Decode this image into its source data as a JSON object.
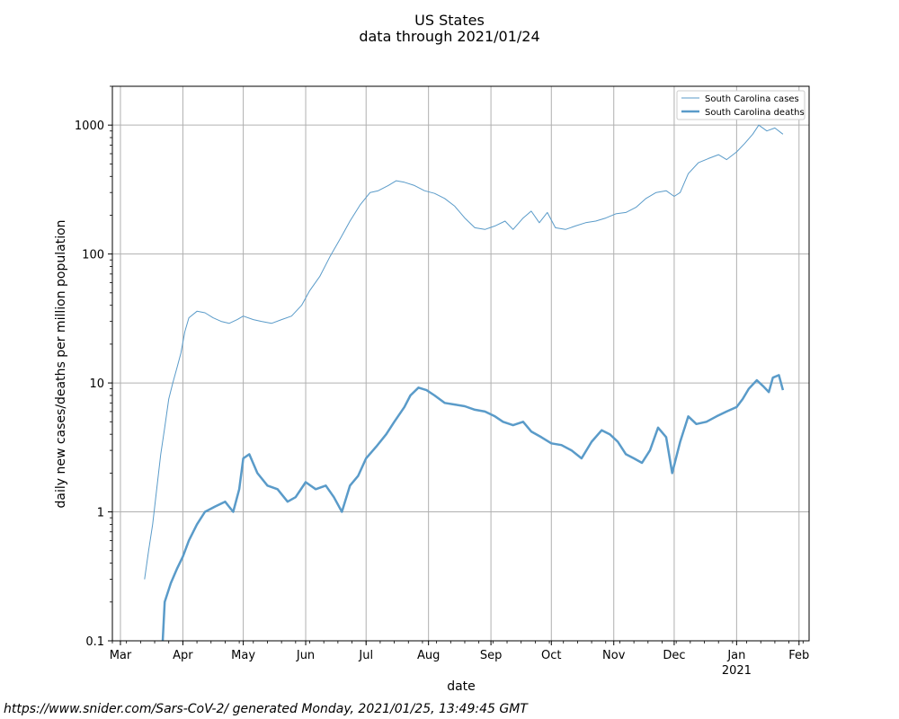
{
  "chart_data": {
    "type": "line",
    "title": "US States",
    "subtitle": "data through 2021/01/24",
    "xlabel": "date",
    "ylabel": "daily new cases/deaths per million population",
    "yscale": "log",
    "ylim": [
      0.1,
      2000
    ],
    "xlim": [
      "2020-02-26",
      "2021-02-06"
    ],
    "x_ticks": [
      {
        "date": "2020-03-01",
        "label": "Mar"
      },
      {
        "date": "2020-04-01",
        "label": "Apr"
      },
      {
        "date": "2020-05-01",
        "label": "May"
      },
      {
        "date": "2020-06-01",
        "label": "Jun"
      },
      {
        "date": "2020-07-01",
        "label": "Jul"
      },
      {
        "date": "2020-08-01",
        "label": "Aug"
      },
      {
        "date": "2020-09-01",
        "label": "Sep"
      },
      {
        "date": "2020-10-01",
        "label": "Oct"
      },
      {
        "date": "2020-11-01",
        "label": "Nov"
      },
      {
        "date": "2020-12-01",
        "label": "Dec"
      },
      {
        "date": "2021-01-01",
        "label": "Jan",
        "sublabel": "2021"
      },
      {
        "date": "2021-02-01",
        "label": "Feb"
      }
    ],
    "y_ticks": [
      {
        "value": 0.1,
        "label": "0.1"
      },
      {
        "value": 1,
        "label": "1"
      },
      {
        "value": 10,
        "label": "10"
      },
      {
        "value": 100,
        "label": "100"
      },
      {
        "value": 1000,
        "label": "1000"
      }
    ],
    "grid": true,
    "legend_position": "top-right",
    "series": [
      {
        "name": "South Carolina cases",
        "color": "#5a9bc9",
        "line": "thin",
        "points": [
          [
            "2020-03-13",
            0.3
          ],
          [
            "2020-03-15",
            0.5
          ],
          [
            "2020-03-17",
            0.8
          ],
          [
            "2020-03-19",
            1.5
          ],
          [
            "2020-03-21",
            2.8
          ],
          [
            "2020-03-23",
            4.5
          ],
          [
            "2020-03-25",
            7.5
          ],
          [
            "2020-03-27",
            10
          ],
          [
            "2020-03-29",
            13
          ],
          [
            "2020-03-31",
            17
          ],
          [
            "2020-04-02",
            25
          ],
          [
            "2020-04-04",
            32
          ],
          [
            "2020-04-08",
            36
          ],
          [
            "2020-04-12",
            35
          ],
          [
            "2020-04-16",
            32
          ],
          [
            "2020-04-20",
            30
          ],
          [
            "2020-04-24",
            29
          ],
          [
            "2020-04-28",
            31
          ],
          [
            "2020-05-01",
            33
          ],
          [
            "2020-05-06",
            31
          ],
          [
            "2020-05-10",
            30
          ],
          [
            "2020-05-15",
            29
          ],
          [
            "2020-05-20",
            31
          ],
          [
            "2020-05-25",
            33
          ],
          [
            "2020-05-30",
            40
          ],
          [
            "2020-06-03",
            52
          ],
          [
            "2020-06-08",
            67
          ],
          [
            "2020-06-13",
            95
          ],
          [
            "2020-06-18",
            130
          ],
          [
            "2020-06-23",
            180
          ],
          [
            "2020-06-28",
            240
          ],
          [
            "2020-07-03",
            300
          ],
          [
            "2020-07-07",
            310
          ],
          [
            "2020-07-12",
            340
          ],
          [
            "2020-07-16",
            370
          ],
          [
            "2020-07-20",
            360
          ],
          [
            "2020-07-25",
            340
          ],
          [
            "2020-07-30",
            310
          ],
          [
            "2020-08-04",
            295
          ],
          [
            "2020-08-09",
            270
          ],
          [
            "2020-08-14",
            235
          ],
          [
            "2020-08-19",
            190
          ],
          [
            "2020-08-24",
            160
          ],
          [
            "2020-08-29",
            155
          ],
          [
            "2020-09-03",
            165
          ],
          [
            "2020-09-08",
            180
          ],
          [
            "2020-09-12",
            155
          ],
          [
            "2020-09-17",
            190
          ],
          [
            "2020-09-21",
            215
          ],
          [
            "2020-09-25",
            175
          ],
          [
            "2020-09-29",
            210
          ],
          [
            "2020-10-03",
            160
          ],
          [
            "2020-10-08",
            155
          ],
          [
            "2020-10-13",
            165
          ],
          [
            "2020-10-18",
            175
          ],
          [
            "2020-10-23",
            180
          ],
          [
            "2020-10-28",
            190
          ],
          [
            "2020-11-02",
            205
          ],
          [
            "2020-11-07",
            210
          ],
          [
            "2020-11-12",
            230
          ],
          [
            "2020-11-17",
            270
          ],
          [
            "2020-11-22",
            300
          ],
          [
            "2020-11-27",
            310
          ],
          [
            "2020-12-01",
            280
          ],
          [
            "2020-12-04",
            300
          ],
          [
            "2020-12-08",
            420
          ],
          [
            "2020-12-13",
            510
          ],
          [
            "2020-12-18",
            550
          ],
          [
            "2020-12-23",
            590
          ],
          [
            "2020-12-27",
            540
          ],
          [
            "2021-01-01",
            620
          ],
          [
            "2021-01-05",
            720
          ],
          [
            "2021-01-09",
            850
          ],
          [
            "2021-01-12",
            1000
          ],
          [
            "2021-01-16",
            900
          ],
          [
            "2021-01-20",
            950
          ],
          [
            "2021-01-24",
            850
          ]
        ]
      },
      {
        "name": "South Carolina deaths",
        "color": "#5a9bc9",
        "line": "thick",
        "points": [
          [
            "2020-03-22",
            0.1
          ],
          [
            "2020-03-23",
            0.2
          ],
          [
            "2020-03-26",
            0.28
          ],
          [
            "2020-03-29",
            0.36
          ],
          [
            "2020-04-01",
            0.45
          ],
          [
            "2020-04-04",
            0.6
          ],
          [
            "2020-04-08",
            0.8
          ],
          [
            "2020-04-12",
            1.0
          ],
          [
            "2020-04-17",
            1.1
          ],
          [
            "2020-04-22",
            1.2
          ],
          [
            "2020-04-26",
            1.0
          ],
          [
            "2020-04-29",
            1.5
          ],
          [
            "2020-05-01",
            2.6
          ],
          [
            "2020-05-04",
            2.8
          ],
          [
            "2020-05-08",
            2.0
          ],
          [
            "2020-05-13",
            1.6
          ],
          [
            "2020-05-18",
            1.5
          ],
          [
            "2020-05-23",
            1.2
          ],
          [
            "2020-05-27",
            1.3
          ],
          [
            "2020-06-01",
            1.7
          ],
          [
            "2020-06-06",
            1.5
          ],
          [
            "2020-06-11",
            1.6
          ],
          [
            "2020-06-15",
            1.3
          ],
          [
            "2020-06-19",
            1.0
          ],
          [
            "2020-06-23",
            1.6
          ],
          [
            "2020-06-27",
            1.9
          ],
          [
            "2020-07-01",
            2.6
          ],
          [
            "2020-07-06",
            3.2
          ],
          [
            "2020-07-11",
            4.0
          ],
          [
            "2020-07-15",
            5.0
          ],
          [
            "2020-07-20",
            6.5
          ],
          [
            "2020-07-23",
            8.0
          ],
          [
            "2020-07-27",
            9.2
          ],
          [
            "2020-07-31",
            8.8
          ],
          [
            "2020-08-04",
            8.0
          ],
          [
            "2020-08-09",
            7.0
          ],
          [
            "2020-08-14",
            6.8
          ],
          [
            "2020-08-19",
            6.6
          ],
          [
            "2020-08-24",
            6.2
          ],
          [
            "2020-08-29",
            6.0
          ],
          [
            "2020-09-03",
            5.5
          ],
          [
            "2020-09-07",
            5.0
          ],
          [
            "2020-09-12",
            4.7
          ],
          [
            "2020-09-17",
            5.0
          ],
          [
            "2020-09-21",
            4.2
          ],
          [
            "2020-09-26",
            3.8
          ],
          [
            "2020-10-01",
            3.4
          ],
          [
            "2020-10-06",
            3.3
          ],
          [
            "2020-10-11",
            3.0
          ],
          [
            "2020-10-16",
            2.6
          ],
          [
            "2020-10-21",
            3.5
          ],
          [
            "2020-10-26",
            4.3
          ],
          [
            "2020-10-30",
            4.0
          ],
          [
            "2020-11-03",
            3.5
          ],
          [
            "2020-11-07",
            2.8
          ],
          [
            "2020-11-11",
            2.6
          ],
          [
            "2020-11-15",
            2.4
          ],
          [
            "2020-11-19",
            3.0
          ],
          [
            "2020-11-23",
            4.5
          ],
          [
            "2020-11-27",
            3.8
          ],
          [
            "2020-11-30",
            2.0
          ],
          [
            "2020-12-04",
            3.5
          ],
          [
            "2020-12-08",
            5.5
          ],
          [
            "2020-12-12",
            4.8
          ],
          [
            "2020-12-17",
            5.0
          ],
          [
            "2020-12-22",
            5.5
          ],
          [
            "2020-12-27",
            6.0
          ],
          [
            "2021-01-01",
            6.5
          ],
          [
            "2021-01-04",
            7.5
          ],
          [
            "2021-01-07",
            9.0
          ],
          [
            "2021-01-11",
            10.5
          ],
          [
            "2021-01-14",
            9.5
          ],
          [
            "2021-01-17",
            8.5
          ],
          [
            "2021-01-19",
            11.0
          ],
          [
            "2021-01-22",
            11.5
          ],
          [
            "2021-01-24",
            8.8
          ]
        ]
      }
    ]
  },
  "footer": "https://www.snider.com/Sars-CoV-2/ generated Monday, 2021/01/25, 13:49:45 GMT"
}
